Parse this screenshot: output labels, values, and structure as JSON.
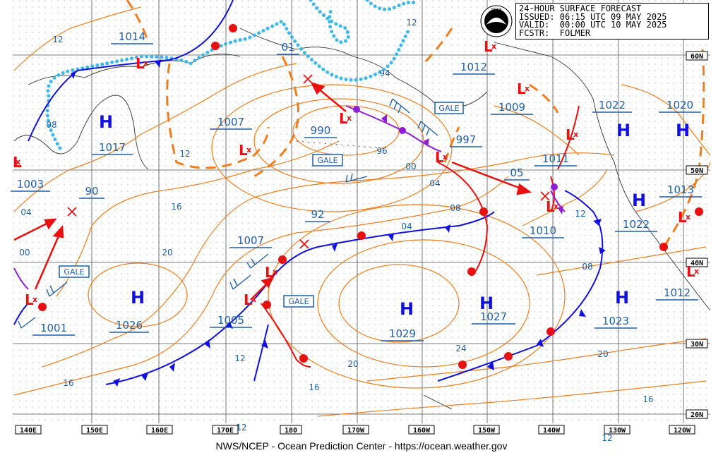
{
  "header": {
    "title": "24-HOUR SURFACE FORECAST",
    "issued": "ISSUED: 06:15 UTC 09 MAY 2025",
    "valid": "VALID:  00:00 UTC 10 MAY 2025",
    "forecaster": "FCSTR:  FOLMER",
    "logo_text": "NOAA"
  },
  "footer": "NWS/NCEP - Ocean Prediction Center - https://ocean.weather.gov",
  "longitude_labels": [
    "140E",
    "150E",
    "160E",
    "170E",
    "180",
    "170W",
    "160W",
    "150W",
    "140W",
    "130W",
    "120W"
  ],
  "latitude_labels": [
    "60N",
    "50N",
    "40N",
    "30N",
    "20N"
  ],
  "pressure_centers": [
    {
      "type": "H",
      "pressure": "1026"
    },
    {
      "type": "H",
      "pressure": "1029"
    },
    {
      "type": "H",
      "pressure": "1027"
    },
    {
      "type": "H",
      "pressure": "1023"
    },
    {
      "type": "H",
      "pressure": "1022"
    },
    {
      "type": "H",
      "pressure": "1022"
    },
    {
      "type": "H",
      "pressure": "1020"
    },
    {
      "type": "H",
      "pressure": "1017"
    },
    {
      "type": "L",
      "pressure": "990"
    },
    {
      "type": "L",
      "pressure": "997"
    },
    {
      "type": "L",
      "pressure": "1007"
    },
    {
      "type": "L",
      "pressure": "1007"
    },
    {
      "type": "L",
      "pressure": "1005"
    },
    {
      "type": "L",
      "pressure": "1001"
    },
    {
      "type": "L",
      "pressure": "1003"
    },
    {
      "type": "L",
      "pressure": "1014"
    },
    {
      "type": "L",
      "pressure": "1012"
    },
    {
      "type": "L",
      "pressure": "1009"
    },
    {
      "type": "L",
      "pressure": "1011"
    },
    {
      "type": "L",
      "pressure": "1010"
    },
    {
      "type": "L",
      "pressure": "1013"
    },
    {
      "type": "L",
      "pressure": "1012"
    },
    {
      "type": "L",
      "pressure": "90"
    },
    {
      "type": "L",
      "pressure": "92"
    },
    {
      "type": "L",
      "pressure": "05"
    },
    {
      "type": "L",
      "pressure": "01"
    }
  ],
  "warnings": [
    "GALE",
    "GALE",
    "GALE",
    "GALE"
  ],
  "isobar_labels": [
    "12",
    "12",
    "16",
    "20",
    "16",
    "24",
    "20",
    "16",
    "20",
    "12",
    "16",
    "12",
    "08",
    "04",
    "00",
    "96",
    "04",
    "08",
    "12",
    "00",
    "04",
    "12",
    "08",
    "94",
    "12"
  ],
  "colors": {
    "isobar": "#f07d1e",
    "isobar_label": "#1f5fa8",
    "cold_front": "#1010e0",
    "warm_front": "#e81010",
    "occluded": "#8f1fd6",
    "ice": "#3fb8e8",
    "label_box": "#1f5fa8",
    "grid": "#000000",
    "land": "#333333"
  }
}
